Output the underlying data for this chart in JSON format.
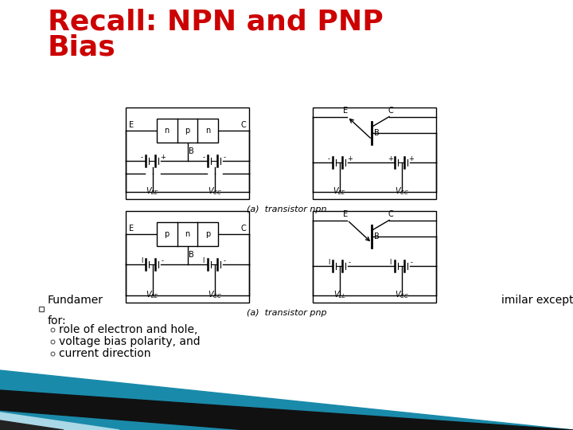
{
  "title_line1": "Recall: NPN and PNP",
  "title_line2": "Bias",
  "title_color": "#cc0000",
  "title_fontsize": 26,
  "bg_color": "#ffffff",
  "bullet_color": "#4444aa",
  "bullet1_start": "Fundamer",
  "bullet1_end": "imilar except\nfor:",
  "sub_bullet1": "role of electron and hole,",
  "sub_bullet2": "voltage bias polarity, and",
  "sub_bullet3": "current direction",
  "text_fontsize": 10,
  "caption_npn": "(a)  transistor npn",
  "caption_pnp": "(a)  transistor pnp"
}
